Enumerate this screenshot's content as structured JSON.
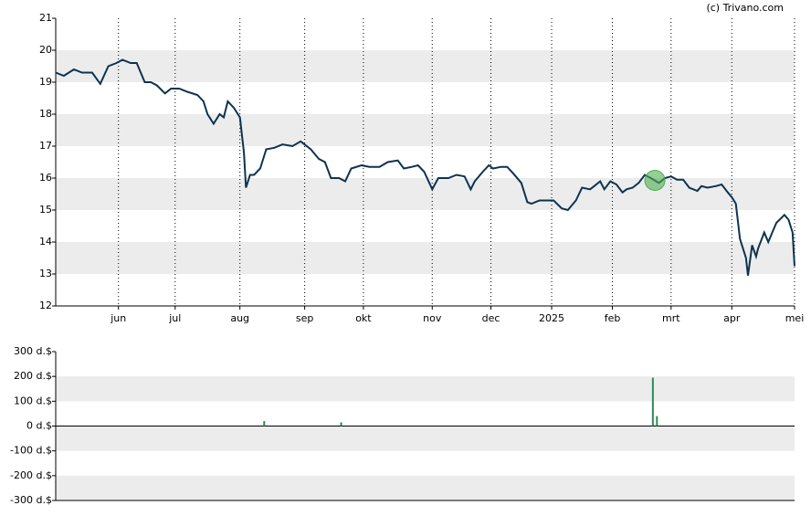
{
  "credit": "(c) Trivano.com",
  "chart_data": [
    {
      "type": "line",
      "color": "#0d3350",
      "xlim": [
        0,
        365
      ],
      "xticks": [
        {
          "value": 31,
          "label": "jun"
        },
        {
          "value": 59,
          "label": "jul"
        },
        {
          "value": 91,
          "label": "aug"
        },
        {
          "value": 123,
          "label": "sep"
        },
        {
          "value": 152,
          "label": "okt"
        },
        {
          "value": 186,
          "label": "nov"
        },
        {
          "value": 215,
          "label": "dec"
        },
        {
          "value": 245,
          "label": "2025"
        },
        {
          "value": 275,
          "label": "feb"
        },
        {
          "value": 304,
          "label": "mrt"
        },
        {
          "value": 334,
          "label": "apr"
        },
        {
          "value": 365,
          "label": "mei"
        }
      ],
      "ylim": [
        12,
        21
      ],
      "yticks": [
        12,
        13,
        14,
        15,
        16,
        17,
        18,
        19,
        20,
        21
      ],
      "x": [
        0,
        4,
        9,
        13,
        18,
        22,
        26,
        30,
        33,
        37,
        40,
        44,
        47,
        50,
        54,
        57,
        61,
        65,
        70,
        73,
        75,
        78,
        81,
        83,
        85,
        88,
        91,
        93,
        94,
        96,
        98,
        101,
        104,
        108,
        112,
        117,
        121,
        126,
        130,
        133,
        136,
        140,
        143,
        146,
        151,
        155,
        160,
        164,
        169,
        172,
        176,
        179,
        182,
        186,
        189,
        194,
        198,
        202,
        205,
        207,
        211,
        214,
        216,
        220,
        223,
        226,
        230,
        233,
        235,
        239,
        243,
        246,
        250,
        253,
        257,
        260,
        264,
        266,
        269,
        271,
        274,
        277,
        280,
        282,
        285,
        288,
        291,
        294,
        298,
        301,
        304,
        307,
        310,
        313,
        317,
        319,
        322,
        326,
        329,
        332,
        334,
        336,
        338,
        341,
        342,
        344,
        346,
        347,
        350,
        352,
        354,
        356,
        360,
        362,
        364,
        365
      ],
      "values": [
        19.3,
        19.2,
        19.4,
        19.3,
        19.3,
        18.95,
        19.5,
        19.6,
        19.7,
        19.6,
        19.6,
        19.0,
        19.0,
        18.9,
        18.65,
        18.8,
        18.8,
        18.7,
        18.6,
        18.4,
        18.0,
        17.7,
        18.0,
        17.9,
        18.4,
        18.2,
        17.9,
        16.8,
        15.7,
        16.1,
        16.1,
        16.3,
        16.9,
        16.95,
        17.05,
        17.0,
        17.15,
        16.9,
        16.6,
        16.5,
        16.0,
        16.0,
        15.9,
        16.3,
        16.4,
        16.35,
        16.35,
        16.5,
        16.55,
        16.3,
        16.35,
        16.4,
        16.2,
        15.65,
        16.0,
        16.0,
        16.1,
        16.05,
        15.65,
        15.9,
        16.2,
        16.4,
        16.3,
        16.35,
        16.35,
        16.15,
        15.85,
        15.25,
        15.2,
        15.3,
        15.3,
        15.3,
        15.05,
        15.0,
        15.3,
        15.7,
        15.65,
        15.75,
        15.9,
        15.65,
        15.9,
        15.8,
        15.55,
        15.65,
        15.7,
        15.85,
        16.1,
        16.0,
        15.85,
        16.0,
        16.05,
        15.95,
        15.95,
        15.7,
        15.6,
        15.75,
        15.7,
        15.75,
        15.8,
        15.55,
        15.4,
        15.2,
        14.1,
        13.5,
        12.95,
        13.9,
        13.55,
        13.8,
        14.3,
        14.0,
        14.3,
        14.6,
        14.85,
        14.7,
        14.3,
        13.25
      ],
      "highlight": {
        "x": 296,
        "y": 15.93,
        "color": "#4caf50"
      }
    },
    {
      "type": "bar",
      "color": "#2e8b57",
      "xlim": [
        0,
        365
      ],
      "ylim": [
        -300,
        300
      ],
      "yticks": [
        {
          "value": -300,
          "label": "-300 d.$"
        },
        {
          "value": -200,
          "label": "-200 d.$"
        },
        {
          "value": -100,
          "label": "-100 d.$"
        },
        {
          "value": 0,
          "label": "0 d.$"
        },
        {
          "value": 100,
          "label": "100 d.$"
        },
        {
          "value": 200,
          "label": "200 d.$"
        },
        {
          "value": 300,
          "label": "300 d.$"
        }
      ],
      "x": [
        103,
        141,
        295,
        297
      ],
      "values": [
        20,
        15,
        195,
        40
      ]
    }
  ]
}
